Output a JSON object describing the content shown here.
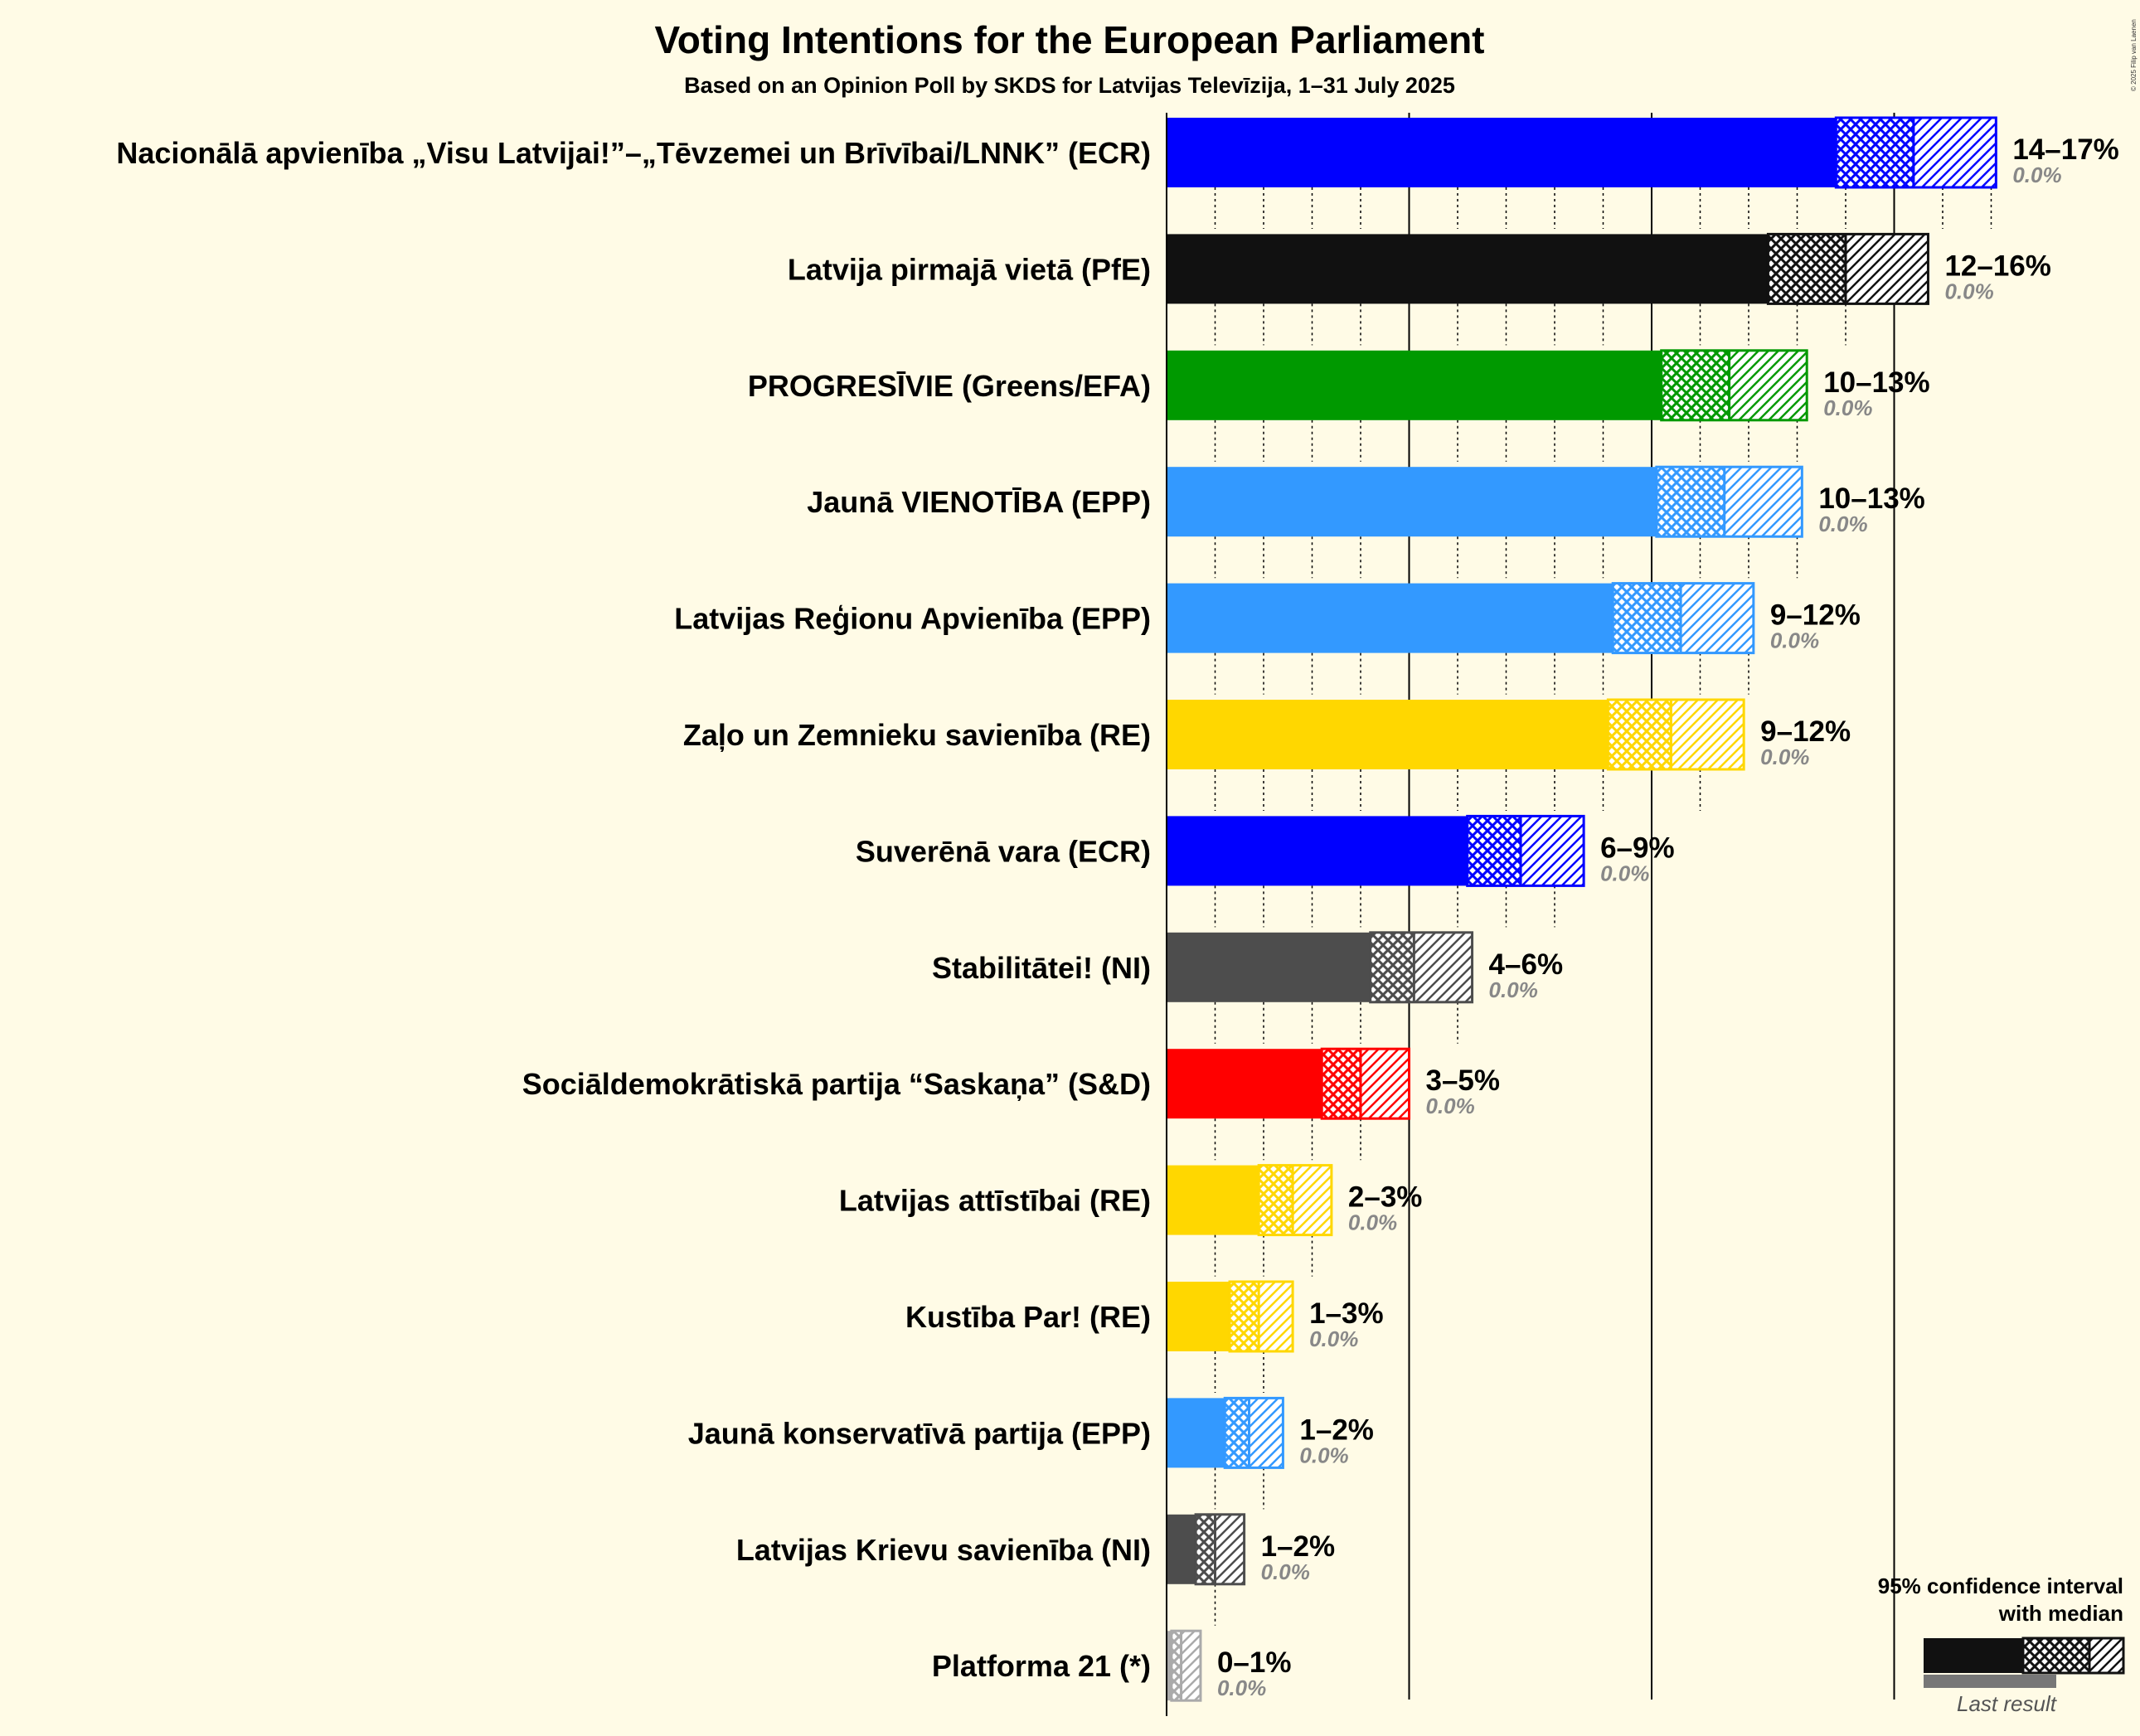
{
  "chart_data": {
    "type": "bar",
    "orientation": "horizontal",
    "title": "Voting Intentions for the European Parliament",
    "subtitle": "Based on an Opinion Poll by SKDS for Latvijas Televīzija, 1–31 July 2025",
    "xlim": [
      0,
      20
    ],
    "series": [
      {
        "party": "Nacionālā apvienība „Visu Latvijai!”–„Tēvzemei un Brīvībai/LNNK” (ECR)",
        "color": "#0000ff",
        "low": 13.8,
        "median": 15.4,
        "high": 17.1,
        "ticks_to": 17.0,
        "range_label": "14–17%",
        "last_label": "0.0%"
      },
      {
        "party": "Latvija pirmajā vietā (PfE)",
        "color": "#111111",
        "low": 12.4,
        "median": 14.0,
        "high": 15.7,
        "ticks_to": 15.0,
        "range_label": "12–16%",
        "last_label": "0.0%"
      },
      {
        "party": "PROGRESĪVIE (Greens/EFA)",
        "color": "#009900",
        "low": 10.2,
        "median": 11.6,
        "high": 13.2,
        "ticks_to": 13.0,
        "range_label": "10–13%",
        "last_label": "0.0%"
      },
      {
        "party": "Jaunā VIENOTĪBA (EPP)",
        "color": "#3399ff",
        "low": 10.1,
        "median": 11.5,
        "high": 13.1,
        "ticks_to": 13.0,
        "range_label": "10–13%",
        "last_label": "0.0%"
      },
      {
        "party": "Latvijas Reģionu Apvienība (EPP)",
        "color": "#3399ff",
        "low": 9.2,
        "median": 10.6,
        "high": 12.1,
        "ticks_to": 12.0,
        "range_label": "9–12%",
        "last_label": "0.0%"
      },
      {
        "party": "Zaļo un Zemnieku savienība (RE)",
        "color": "#ffd700",
        "low": 9.1,
        "median": 10.4,
        "high": 11.9,
        "ticks_to": 11.0,
        "range_label": "9–12%",
        "last_label": "0.0%"
      },
      {
        "party": "Suverēnā vara (ECR)",
        "color": "#0000ff",
        "low": 6.2,
        "median": 7.3,
        "high": 8.6,
        "ticks_to": 8.0,
        "range_label": "6–9%",
        "last_label": "0.0%"
      },
      {
        "party": "Stabilitātei! (NI)",
        "color": "#4d4d4d",
        "low": 4.2,
        "median": 5.1,
        "high": 6.3,
        "ticks_to": 6.0,
        "range_label": "4–6%",
        "last_label": "0.0%"
      },
      {
        "party": "Sociāldemokrātiskā partija “Saskaņa” (S&D)",
        "color": "#ff0000",
        "low": 3.2,
        "median": 4.0,
        "high": 5.0,
        "ticks_to": 5.0,
        "range_label": "3–5%",
        "last_label": "0.0%"
      },
      {
        "party": "Latvijas attīstībai (RE)",
        "color": "#ffd700",
        "low": 1.9,
        "median": 2.6,
        "high": 3.4,
        "ticks_to": 3.0,
        "range_label": "2–3%",
        "last_label": "0.0%"
      },
      {
        "party": "Kustība Par! (RE)",
        "color": "#ffd700",
        "low": 1.3,
        "median": 1.9,
        "high": 2.6,
        "ticks_to": 2.0,
        "range_label": "1–3%",
        "last_label": "0.0%"
      },
      {
        "party": "Jaunā konservatīvā partija (EPP)",
        "color": "#3399ff",
        "low": 1.2,
        "median": 1.7,
        "high": 2.4,
        "ticks_to": 2.0,
        "range_label": "1–2%",
        "last_label": "0.0%"
      },
      {
        "party": "Latvijas Krievu savienība (NI)",
        "color": "#4d4d4d",
        "low": 0.6,
        "median": 1.0,
        "high": 1.6,
        "ticks_to": 1.0,
        "range_label": "1–2%",
        "last_label": "0.0%"
      },
      {
        "party": "Platforma 21 (*)",
        "color": "#aaaaaa",
        "low": 0.1,
        "median": 0.3,
        "high": 0.7,
        "ticks_to": 0.0,
        "range_label": "0–1%",
        "last_label": "0.0%"
      }
    ],
    "legend": {
      "line1": "95% confidence interval",
      "line2": "with median",
      "last_result": "Last result",
      "position": "bottom-right"
    },
    "copyright": "© 2025 Filip van Laenen"
  }
}
